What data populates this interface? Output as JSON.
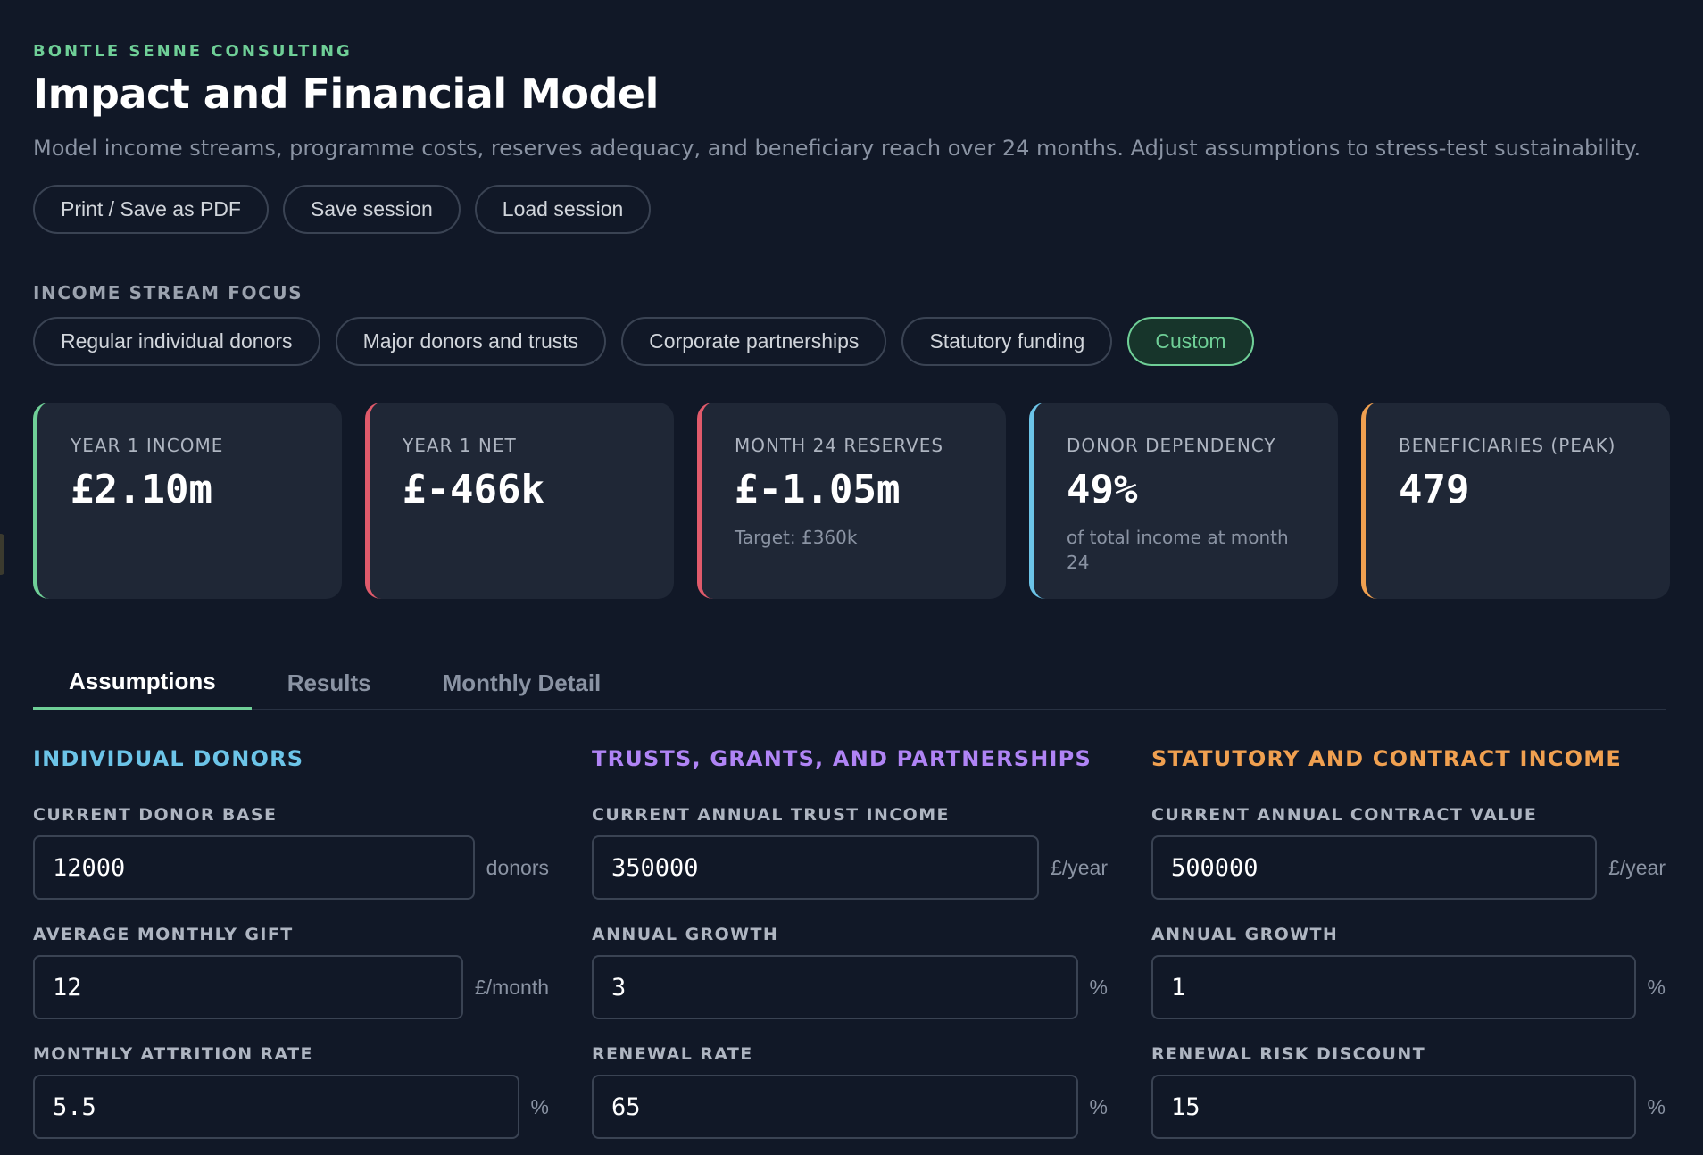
{
  "header": {
    "brand": "BONTLE SENNE CONSULTING",
    "title": "Impact and Financial Model",
    "subtitle": "Model income streams, programme costs, reserves adequacy, and beneficiary reach over 24 months. Adjust assumptions to stress-test sustainability."
  },
  "actions": {
    "print": "Print / Save as PDF",
    "save": "Save session",
    "load": "Load session"
  },
  "focus": {
    "label": "INCOME STREAM FOCUS",
    "options": [
      "Regular individual donors",
      "Major donors and trusts",
      "Corporate partnerships",
      "Statutory funding",
      "Custom"
    ],
    "selected": "Custom"
  },
  "kpis": [
    {
      "label": "YEAR 1 INCOME",
      "value": "£2.10m",
      "note": "",
      "color": "#6fcf97"
    },
    {
      "label": "YEAR 1 NET",
      "value": "£-466k",
      "note": "",
      "color": "#e05a6b"
    },
    {
      "label": "MONTH 24 RESERVES",
      "value": "£-1.05m",
      "note": "Target: £360k",
      "color": "#e05a6b"
    },
    {
      "label": "DONOR DEPENDENCY",
      "value": "49%",
      "note": "of total income at month 24",
      "color": "#6cc4e8"
    },
    {
      "label": "BENEFICIARIES (PEAK)",
      "value": "479",
      "note": "",
      "color": "#f0a050"
    }
  ],
  "tabs": [
    "Assumptions",
    "Results",
    "Monthly Detail"
  ],
  "active_tab": "Assumptions",
  "columns": [
    {
      "title": "INDIVIDUAL DONORS",
      "fields": [
        {
          "label": "CURRENT DONOR BASE",
          "value": "12000",
          "unit": "donors"
        },
        {
          "label": "AVERAGE MONTHLY GIFT",
          "value": "12",
          "unit": "£/month"
        },
        {
          "label": "MONTHLY ATTRITION RATE",
          "value": "5.5",
          "unit": "%"
        }
      ]
    },
    {
      "title": "TRUSTS, GRANTS, AND PARTNERSHIPS",
      "fields": [
        {
          "label": "CURRENT ANNUAL TRUST INCOME",
          "value": "350000",
          "unit": "£/year"
        },
        {
          "label": "ANNUAL GROWTH",
          "value": "3",
          "unit": "%"
        },
        {
          "label": "RENEWAL RATE",
          "value": "65",
          "unit": "%"
        }
      ]
    },
    {
      "title": "STATUTORY AND CONTRACT INCOME",
      "fields": [
        {
          "label": "CURRENT ANNUAL CONTRACT VALUE",
          "value": "500000",
          "unit": "£/year"
        },
        {
          "label": "ANNUAL GROWTH",
          "value": "1",
          "unit": "%"
        },
        {
          "label": "RENEWAL RISK DISCOUNT",
          "value": "15",
          "unit": "%"
        }
      ]
    }
  ]
}
